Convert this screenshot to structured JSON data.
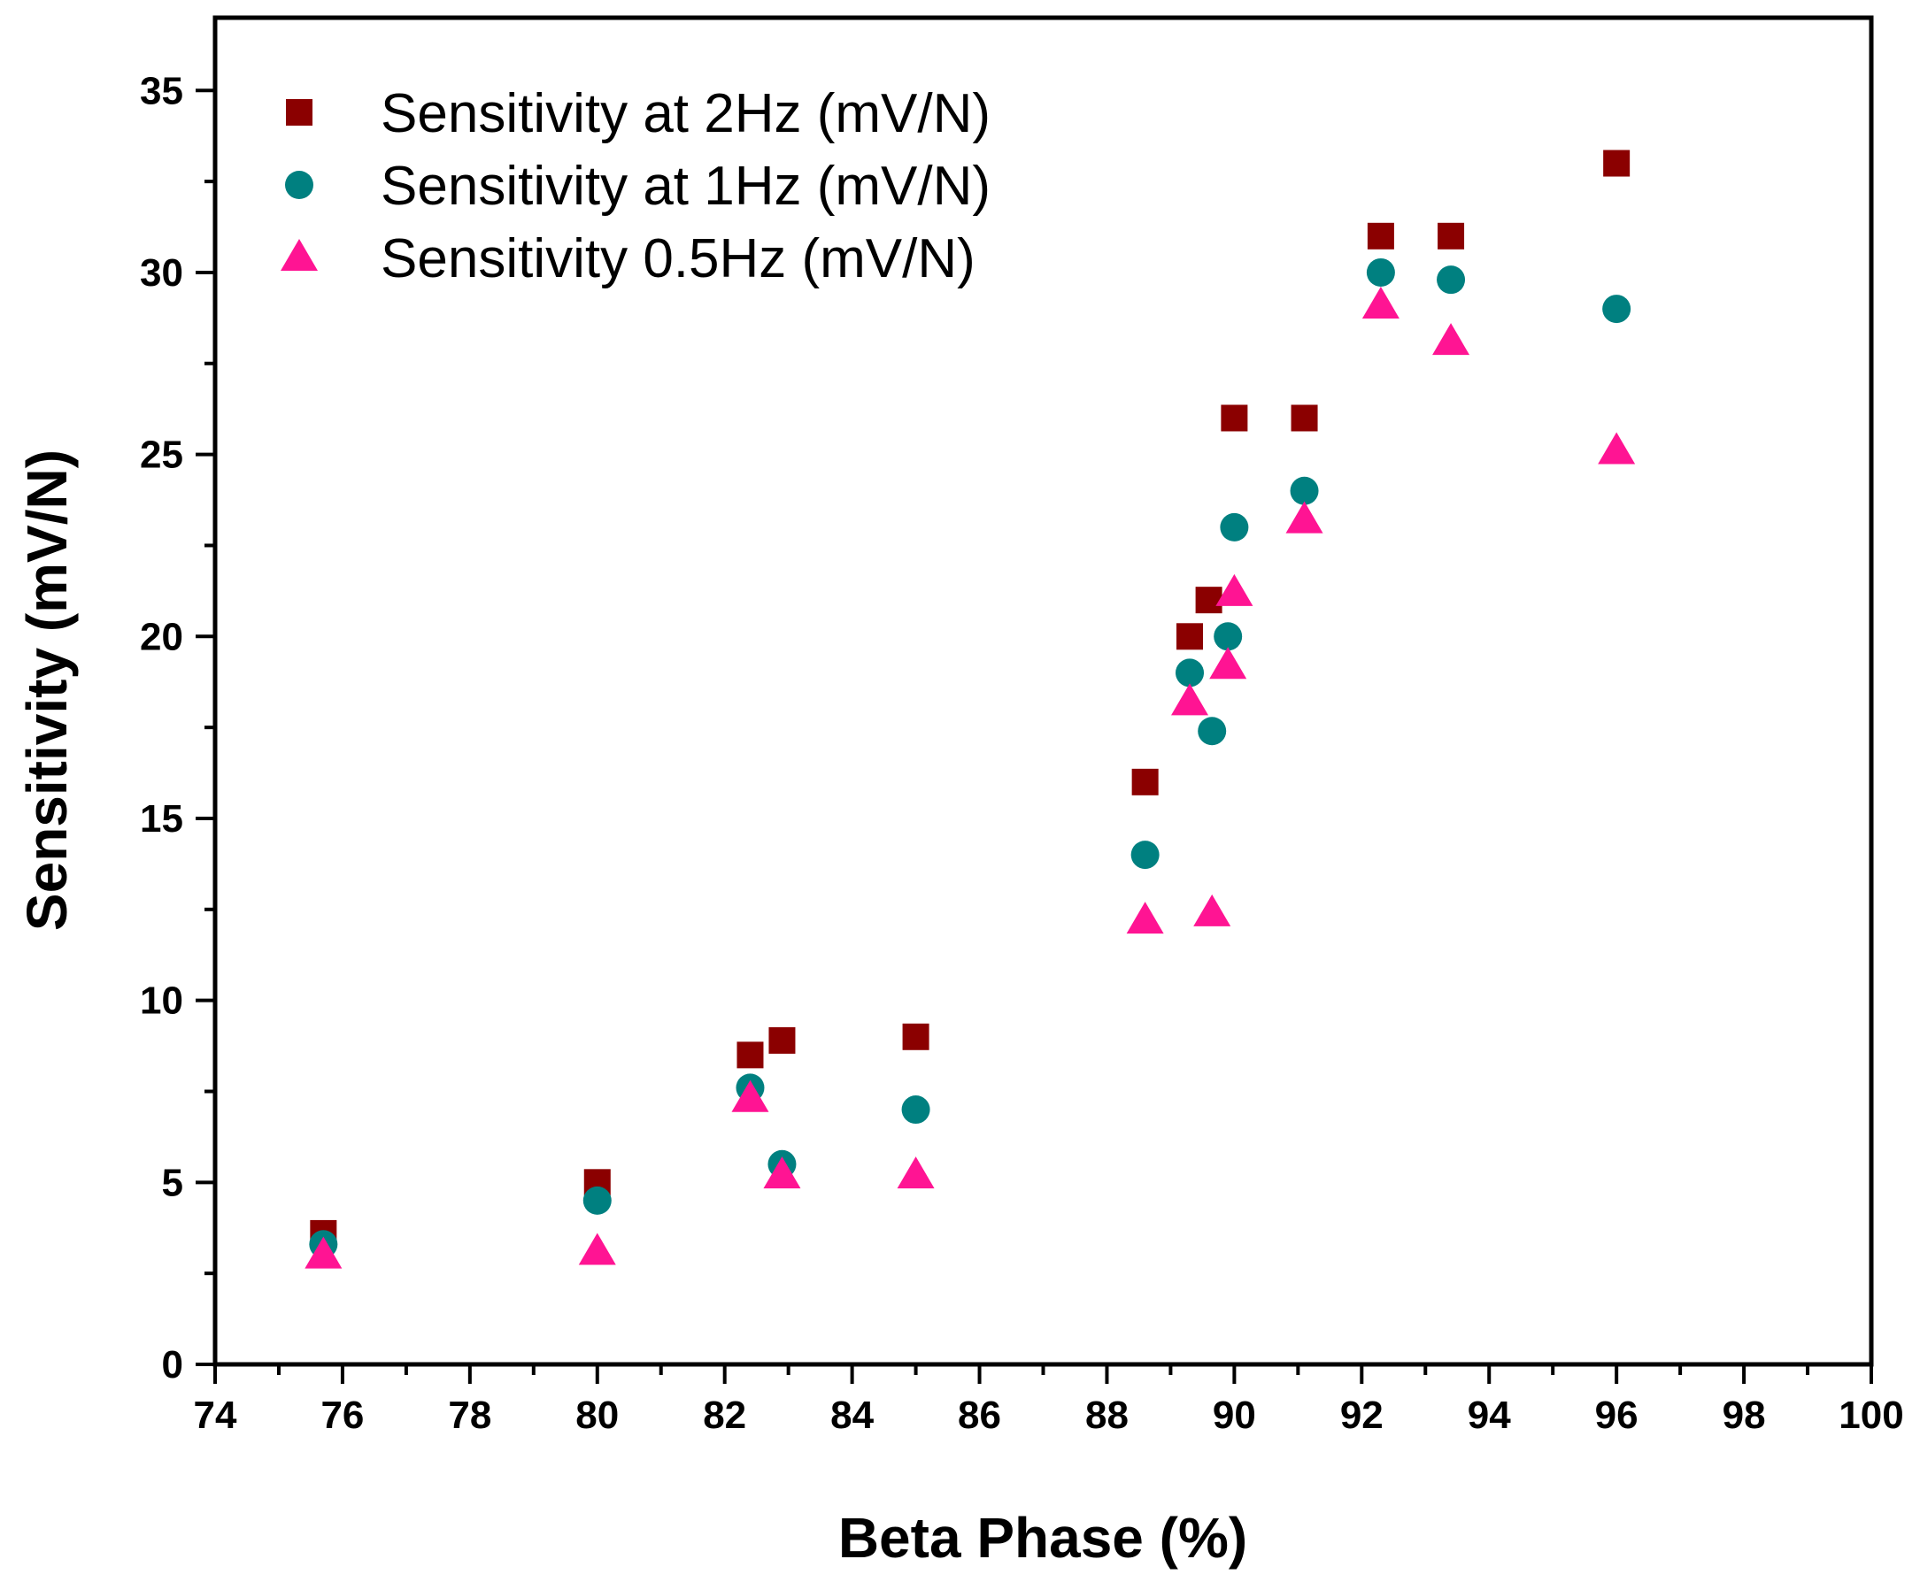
{
  "chart_data": {
    "type": "scatter",
    "title": "",
    "xlabel": "Beta Phase (%)",
    "ylabel": "Sensitivity (mV/N)",
    "xlim": [
      74,
      100
    ],
    "ylim": [
      0,
      37
    ],
    "xticks": [
      74,
      76,
      78,
      80,
      82,
      84,
      86,
      88,
      90,
      92,
      94,
      96,
      98,
      100
    ],
    "yticks": [
      0,
      5,
      10,
      15,
      20,
      25,
      30,
      35
    ],
    "legend_position": "top-left",
    "series": [
      {
        "name": "Sensitivity at 2Hz (mV/N)",
        "marker": "square",
        "color": "#8b0000",
        "points": [
          [
            75.7,
            3.6
          ],
          [
            80.0,
            5.0
          ],
          [
            82.4,
            8.5
          ],
          [
            82.9,
            8.9
          ],
          [
            85.0,
            9.0
          ],
          [
            88.6,
            16.0
          ],
          [
            89.3,
            20.0
          ],
          [
            89.6,
            21.0
          ],
          [
            90.0,
            26.0
          ],
          [
            91.1,
            26.0
          ],
          [
            92.3,
            31.0
          ],
          [
            93.4,
            31.0
          ],
          [
            96.0,
            33.0
          ]
        ]
      },
      {
        "name": "Sensitivity at 1Hz (mV/N)",
        "marker": "circle",
        "color": "#008080",
        "points": [
          [
            75.7,
            3.3
          ],
          [
            80.0,
            4.5
          ],
          [
            82.4,
            7.6
          ],
          [
            82.9,
            5.5
          ],
          [
            85.0,
            7.0
          ],
          [
            88.6,
            14.0
          ],
          [
            89.3,
            19.0
          ],
          [
            89.65,
            17.4
          ],
          [
            89.9,
            20.0
          ],
          [
            90.0,
            23.0
          ],
          [
            91.1,
            24.0
          ],
          [
            92.3,
            30.0
          ],
          [
            93.4,
            29.8
          ],
          [
            96.0,
            29.0
          ]
        ]
      },
      {
        "name": "Sensitivity 0.5Hz (mV/N)",
        "marker": "triangle",
        "color": "#ff1493",
        "points": [
          [
            75.7,
            3.0
          ],
          [
            80.0,
            3.1
          ],
          [
            82.4,
            7.3
          ],
          [
            82.9,
            5.2
          ],
          [
            85.0,
            5.2
          ],
          [
            88.6,
            12.2
          ],
          [
            89.3,
            18.2
          ],
          [
            89.65,
            12.4
          ],
          [
            89.9,
            19.2
          ],
          [
            90.0,
            21.2
          ],
          [
            91.1,
            23.2
          ],
          [
            92.3,
            29.1
          ],
          [
            93.4,
            28.1
          ],
          [
            96.0,
            25.1
          ]
        ]
      }
    ]
  }
}
